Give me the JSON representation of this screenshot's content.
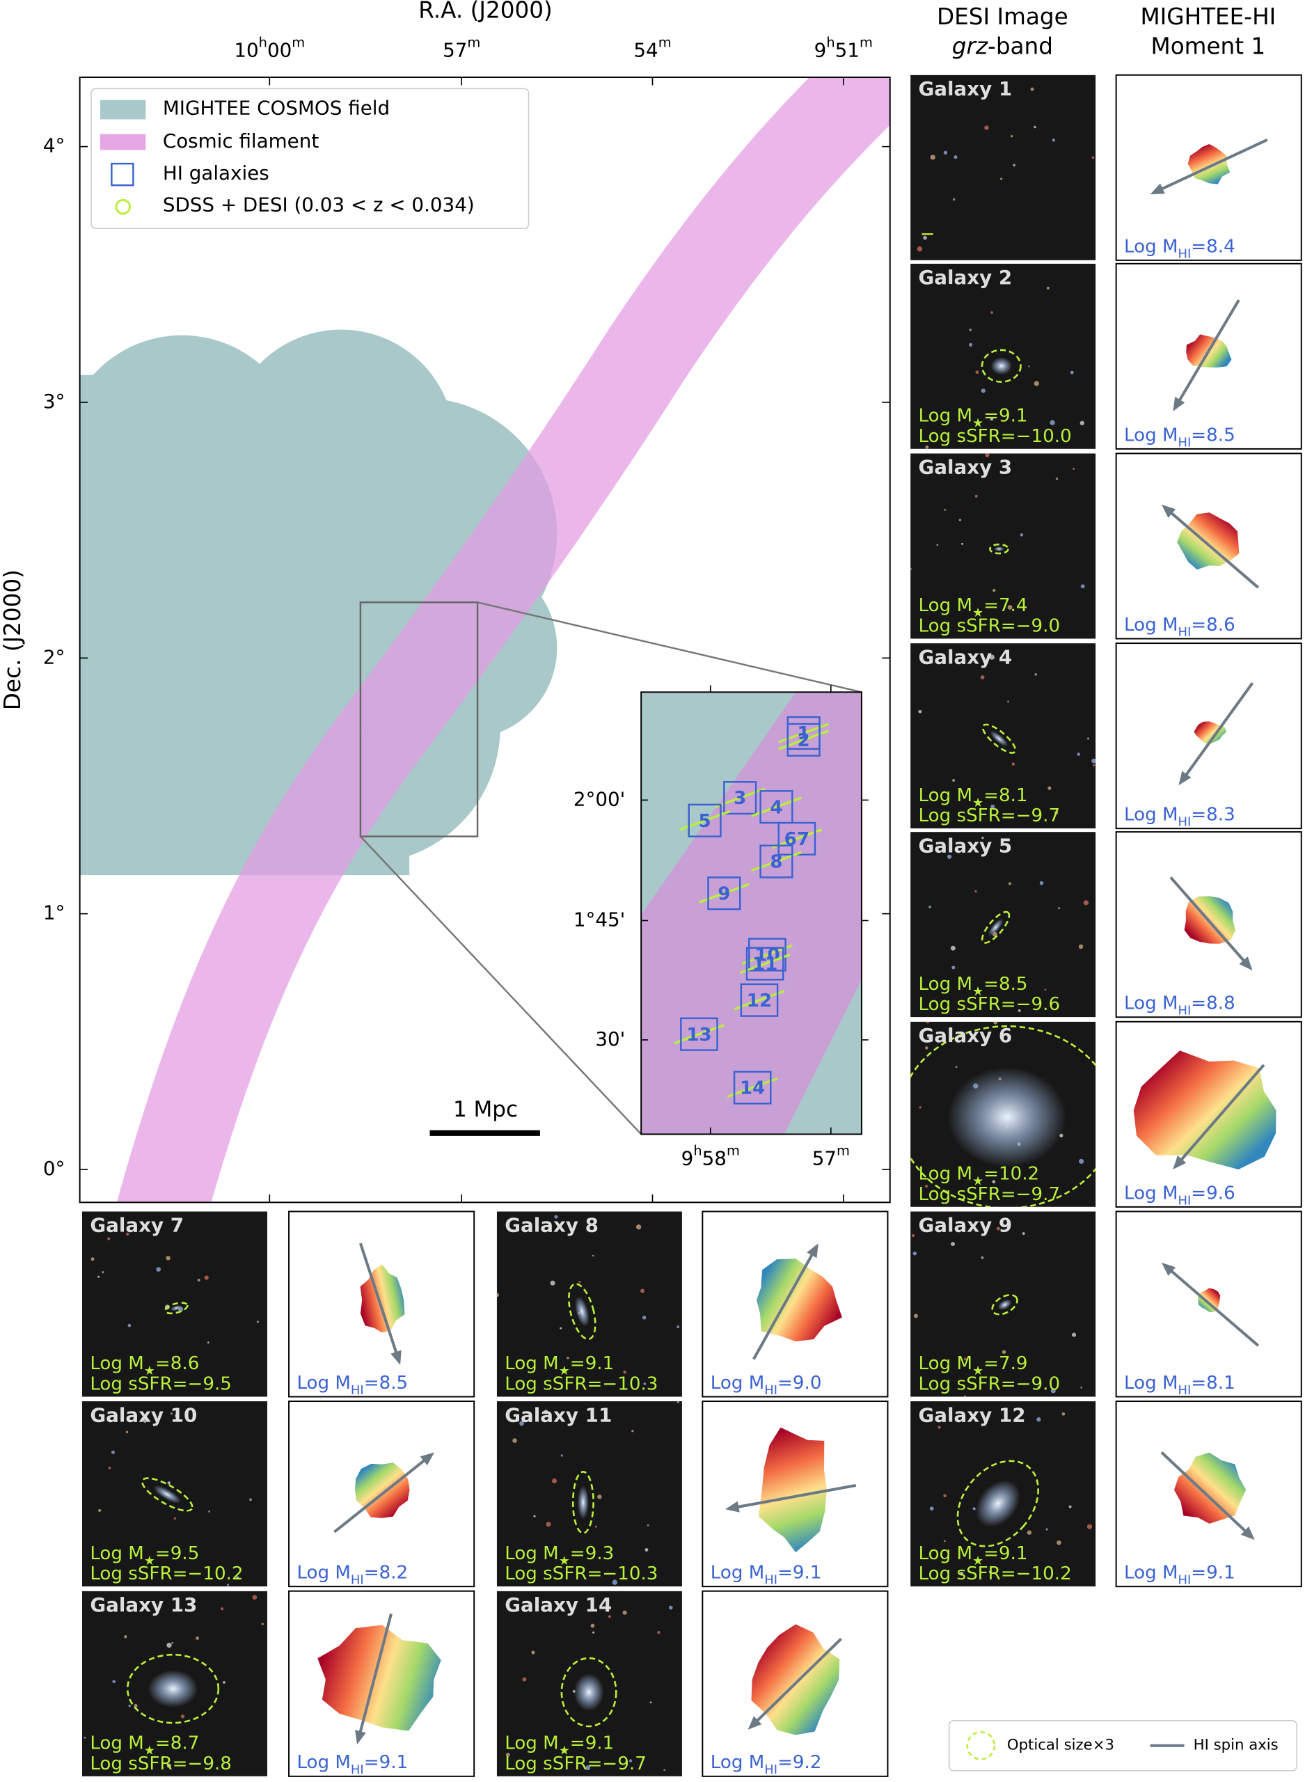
{
  "header": {
    "desi_title": "DESI Image",
    "desi_band_italic": "grz",
    "desi_band_rest": "-band",
    "mhi_title": "MIGHTEE-HI",
    "mhi_subtitle": "Moment 1"
  },
  "map": {
    "x_label": "R.A. (J2000)",
    "y_label": "Dec. (J2000)",
    "x_ticks": [
      [
        "10",
        "h",
        "00",
        "m"
      ],
      [
        "57",
        "m"
      ],
      [
        "54",
        "m"
      ],
      [
        "9",
        "h",
        "51",
        "m"
      ]
    ],
    "y_ticks": [
      "4°",
      "3°",
      "2°",
      "1°",
      "0°"
    ],
    "legend": [
      "MIGHTEE COSMOS field",
      "Cosmic filament",
      "HI galaxies",
      "SDSS + DESI (0.03 < z < 0.034)"
    ],
    "scale_bar": "1 Mpc"
  },
  "inset": {
    "y_ticks": [
      "2°00'",
      "1°45'",
      "30'"
    ],
    "x_ticks": [
      [
        "9",
        "h",
        "58",
        "m"
      ],
      [
        "57",
        "m"
      ]
    ],
    "labels": [
      "1",
      "2",
      "3",
      "4",
      "5",
      "67",
      "8",
      "9",
      "10",
      "11",
      "12",
      "13",
      "14"
    ]
  },
  "labels": {
    "mstar": [
      "Log M",
      "★",
      "="
    ],
    "ssfr": "Log sSFR=",
    "mhi": [
      "Log M",
      "HI",
      "="
    ]
  },
  "galaxies": [
    {
      "name": "Galaxy 1",
      "mhi": "8.4"
    },
    {
      "name": "Galaxy 2",
      "mstar": "9.1",
      "ssfr": "−10.0",
      "mhi": "8.5"
    },
    {
      "name": "Galaxy 3",
      "mstar": "7.4",
      "ssfr": "−9.0",
      "mhi": "8.6"
    },
    {
      "name": "Galaxy 4",
      "mstar": "8.1",
      "ssfr": "−9.7",
      "mhi": "8.3"
    },
    {
      "name": "Galaxy 5",
      "mstar": "8.5",
      "ssfr": "−9.6",
      "mhi": "8.8"
    },
    {
      "name": "Galaxy 6",
      "mstar": "10.2",
      "ssfr": "−9.7",
      "mhi": "9.6"
    },
    {
      "name": "Galaxy 7",
      "mstar": "8.6",
      "ssfr": "−9.5",
      "mhi": "8.5"
    },
    {
      "name": "Galaxy 8",
      "mstar": "9.1",
      "ssfr": "−10.3",
      "mhi": "9.0"
    },
    {
      "name": "Galaxy 9",
      "mstar": "7.9",
      "ssfr": "−9.0",
      "mhi": "8.1"
    },
    {
      "name": "Galaxy 10",
      "mstar": "9.5",
      "ssfr": "−10.2",
      "mhi": "8.2"
    },
    {
      "name": "Galaxy 11",
      "mstar": "9.3",
      "ssfr": "−10.3",
      "mhi": "9.1"
    },
    {
      "name": "Galaxy 12",
      "mstar": "9.1",
      "ssfr": "−10.2",
      "mhi": "9.1"
    },
    {
      "name": "Galaxy 13",
      "mstar": "8.7",
      "ssfr": "−9.8",
      "mhi": "9.1"
    },
    {
      "name": "Galaxy 14",
      "mstar": "9.1",
      "ssfr": "−9.7",
      "mhi": "9.2"
    }
  ],
  "key": [
    "Optical size×3",
    "HI spin axis"
  ]
}
